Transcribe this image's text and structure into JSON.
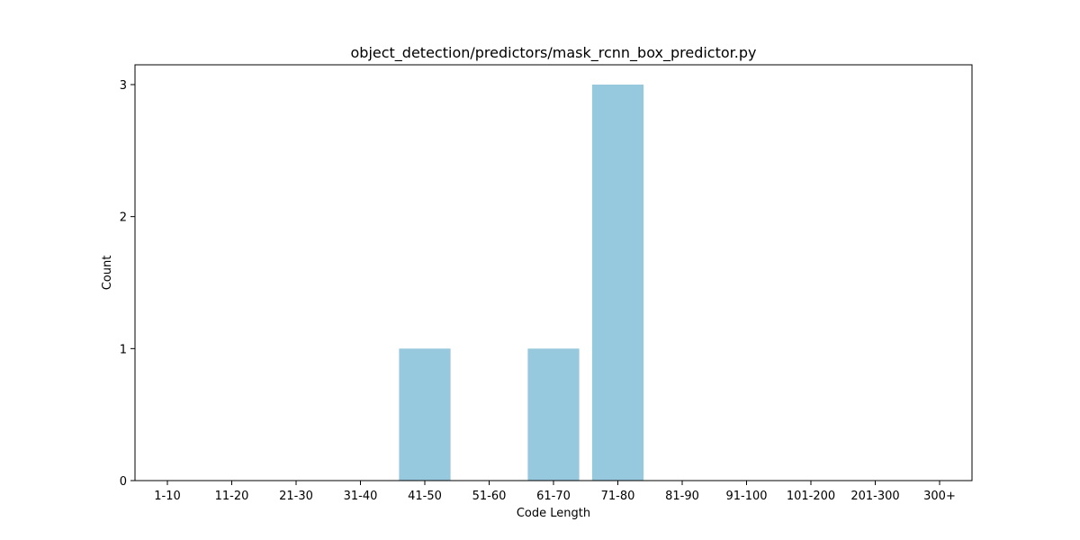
{
  "chart_data": {
    "type": "bar",
    "title": "object_detection/predictors/mask_rcnn_box_predictor.py",
    "xlabel": "Code Length",
    "ylabel": "Count",
    "categories": [
      "1-10",
      "11-20",
      "21-30",
      "31-40",
      "41-50",
      "51-60",
      "61-70",
      "71-80",
      "81-90",
      "91-100",
      "101-200",
      "201-300",
      "300+"
    ],
    "values": [
      0,
      0,
      0,
      0,
      1,
      0,
      1,
      3,
      0,
      0,
      0,
      0,
      0
    ],
    "ylim": [
      0,
      3.15
    ],
    "yticks": [
      0,
      1,
      2,
      3
    ],
    "bar_color": "#96c9dd",
    "grid": false,
    "legend": "none"
  }
}
